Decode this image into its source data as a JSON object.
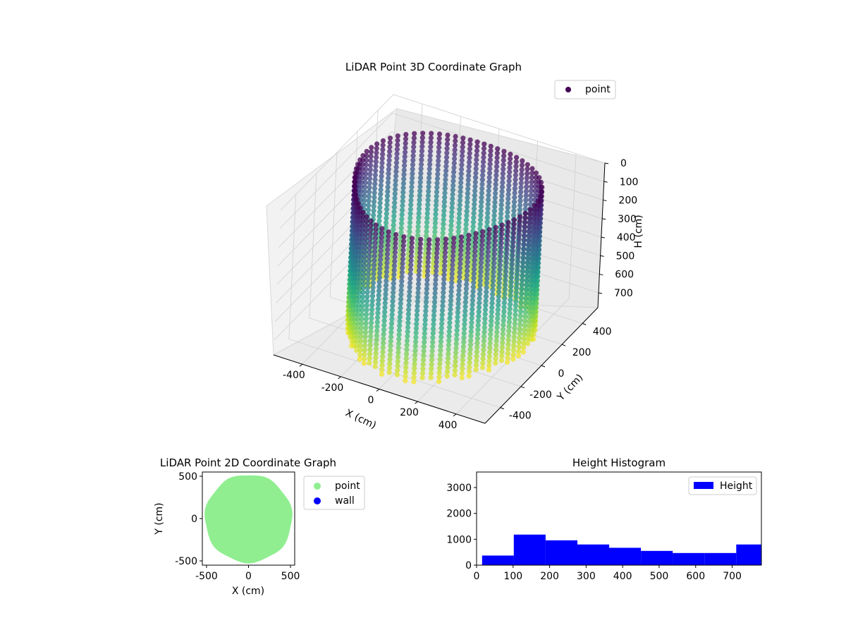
{
  "chart_data": [
    {
      "type": "scatter3d",
      "title": "LiDAR Point 3D Coordinate Graph",
      "xlabel": "X (cm)",
      "ylabel": "Y (cm)",
      "zlabel": "H (cm)",
      "xlim": [
        -550,
        550
      ],
      "ylim": [
        -550,
        550
      ],
      "zlim": [
        0,
        780
      ],
      "z_inverted": true,
      "x_ticks": [
        -400,
        -200,
        0,
        200,
        400
      ],
      "y_ticks": [
        -400,
        -200,
        0,
        200,
        400
      ],
      "z_ticks": [
        0,
        100,
        200,
        300,
        400,
        500,
        600,
        700
      ],
      "legend": {
        "placement": "upper-right",
        "entries": [
          "point"
        ]
      },
      "colormap": "viridis",
      "color_by": "height",
      "series": [
        {
          "name": "point",
          "shape": "cylindrical wall scan, radius ~430 cm",
          "radius": 430,
          "angle_range_deg": [
            0,
            360
          ],
          "height_range": [
            0,
            780
          ],
          "color": "#440154"
        }
      ],
      "grid": true
    },
    {
      "type": "scatter",
      "title": "LiDAR Point 2D Coordinate Graph",
      "xlabel": "X (cm)",
      "ylabel": "Y (cm)",
      "xlim": [
        -550,
        550
      ],
      "ylim": [
        -550,
        550
      ],
      "x_ticks": [
        -500,
        0,
        500
      ],
      "y_ticks": [
        -500,
        0,
        500
      ],
      "legend": {
        "placement": "outside-right",
        "entries": [
          "point",
          "wall"
        ]
      },
      "series": [
        {
          "name": "point",
          "color": "#90ee90",
          "shape": "filled disc, radius ~520 cm"
        },
        {
          "name": "wall",
          "color": "#0000ff",
          "points": []
        }
      ],
      "grid": false
    },
    {
      "type": "histogram",
      "title": "Height Histogram",
      "xlabel": "",
      "ylabel": "",
      "xlim": [
        0,
        780
      ],
      "ylim": [
        0,
        3600
      ],
      "x_ticks": [
        0,
        100,
        200,
        300,
        400,
        500,
        600,
        700
      ],
      "y_ticks": [
        0,
        1000,
        2000,
        3000
      ],
      "legend": {
        "placement": "upper-right",
        "entries": [
          "Height"
        ]
      },
      "series": [
        {
          "name": "Height",
          "color": "#0000ff",
          "bin_edges": [
            15,
            102,
            189,
            276,
            363,
            450,
            537,
            624,
            711,
            780
          ],
          "counts": [
            370,
            1180,
            960,
            800,
            670,
            550,
            470,
            470,
            800
          ]
        }
      ],
      "grid": false
    }
  ]
}
